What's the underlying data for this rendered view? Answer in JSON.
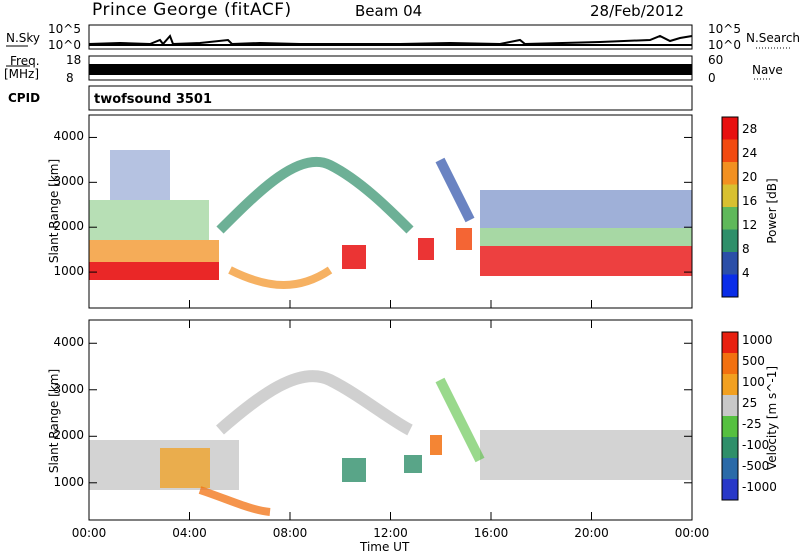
{
  "header": {
    "station": "Prince George (fitACF)",
    "beam": "Beam 04",
    "date": "28/Feb/2012"
  },
  "top_panels": {
    "nsky_label": "N.Sky",
    "nsky_ticks": [
      "10^5",
      "10^0"
    ],
    "nsky_right_ticks": [
      "10^5",
      "10^0"
    ],
    "nsearch_label": "N.Search",
    "freq_label": "Freq.",
    "freq_unit": "[MHz]",
    "freq_ticks": [
      "18",
      "8"
    ],
    "nave_ticks": [
      "60",
      "0"
    ],
    "nave_label": "Nave",
    "cpid_label": "CPID",
    "cpid_value": "twofsound 3501"
  },
  "chart_data": [
    {
      "type": "heatmap",
      "name": "power-panel",
      "ylabel": "Slant Range [km]",
      "ylim": [
        200,
        4500
      ],
      "yticks": [
        "1000",
        "2000",
        "3000",
        "4000"
      ],
      "xlim": [
        0,
        24
      ],
      "colorbar": {
        "label": "Power [dB]",
        "ticks": [
          "4",
          "8",
          "12",
          "16",
          "20",
          "24",
          "28"
        ],
        "range": [
          0,
          30
        ],
        "colors": [
          "#0a2de8",
          "#2b4fa8",
          "#2f8f6a",
          "#5fb85a",
          "#d8c030",
          "#f29020",
          "#f24a10",
          "#e81010"
        ]
      }
    },
    {
      "type": "heatmap",
      "name": "velocity-panel",
      "ylabel": "Slant Range [km]",
      "ylim": [
        200,
        4500
      ],
      "yticks": [
        "1000",
        "2000",
        "3000",
        "4000"
      ],
      "xlim": [
        0,
        24
      ],
      "xticks": [
        "00:00",
        "04:00",
        "08:00",
        "12:00",
        "16:00",
        "20:00",
        "00:00"
      ],
      "xlabel": "Time UT",
      "colorbar": {
        "label": "Velocity [m s^-1]",
        "ticks": [
          "1000",
          "500",
          "100",
          "25",
          "-25",
          "-100",
          "-500",
          "-1000"
        ],
        "colors": [
          "#2838c8",
          "#2a6aa8",
          "#2f8f6a",
          "#55c040",
          "#c8c8c8",
          "#f2a020",
          "#f27010",
          "#e82010"
        ]
      }
    }
  ]
}
